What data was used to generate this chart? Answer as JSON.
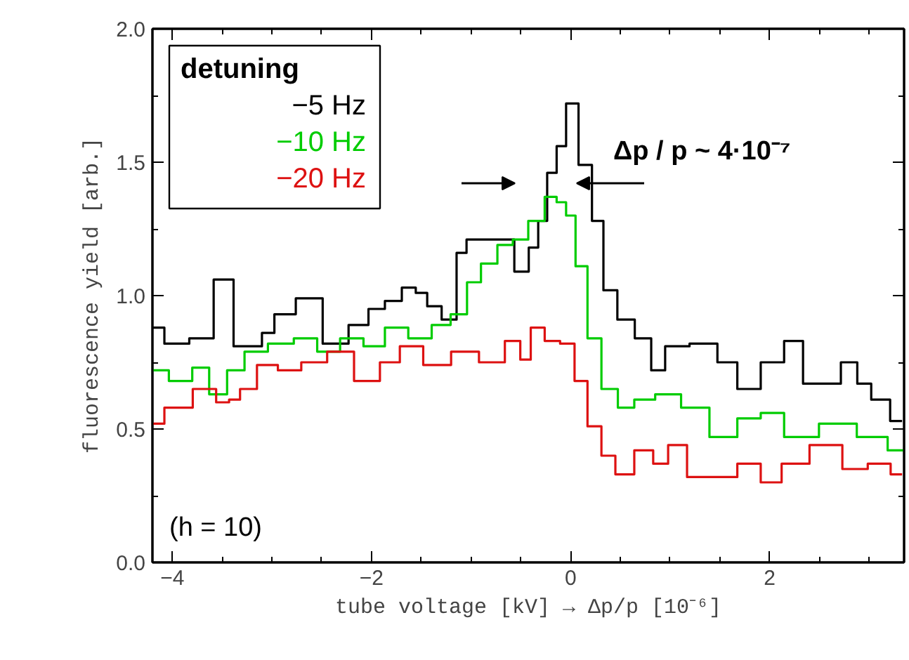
{
  "chart_data": {
    "type": "step",
    "xlabel": "tube voltage [kV] → Δp/p [10⁻⁶]",
    "ylabel": "fluorescence yield [arb.]",
    "legend_title": "detuning",
    "legend": "top left",
    "grid": false,
    "xlim": [
      -4.2,
      3.35
    ],
    "xticks": [
      -4,
      -2,
      0,
      2
    ],
    "ylim": [
      0,
      2
    ],
    "yticks": [
      {
        "value": 0,
        "label": "0.0"
      },
      {
        "value": 0.5,
        "label": "0.5"
      },
      {
        "value": 1,
        "label": "1.0"
      },
      {
        "value": 1.5,
        "label": "1.5"
      },
      {
        "value": 2,
        "label": "2.0"
      }
    ],
    "annotations": [
      "Δp / p ~ 4·10⁻⁷",
      "(h = 10)"
    ],
    "series": [
      {
        "name": "−5 Hz",
        "color": "#000000",
        "x": [
          -4.2,
          -3.96,
          -3.7,
          -3.47,
          -3.3,
          -3.15,
          -3.05,
          -2.9,
          -2.62,
          -2.36,
          -2.1,
          -1.96,
          -1.77,
          -1.62,
          -1.49,
          -1.39,
          -1.2,
          -1.09,
          -1.0,
          -0.9,
          -0.66,
          -0.47,
          -0.37,
          -0.28,
          -0.19,
          -0.09,
          0.0,
          0.16,
          0.27,
          0.39,
          0.55,
          0.74,
          0.88,
          1.02,
          1.37,
          1.58,
          1.77,
          2.05,
          2.24,
          2.43,
          2.62,
          2.81,
          2.95,
          3.09,
          3.33
        ],
        "values": [
          0.88,
          0.82,
          0.84,
          1.06,
          0.81,
          0.81,
          0.86,
          0.93,
          0.99,
          0.82,
          0.89,
          0.95,
          0.98,
          1.03,
          1.01,
          0.96,
          0.91,
          1.16,
          1.21,
          1.21,
          1.21,
          1.09,
          1.18,
          1.28,
          1.46,
          1.56,
          1.72,
          1.49,
          1.28,
          1.02,
          0.91,
          0.84,
          0.72,
          0.81,
          0.82,
          0.75,
          0.65,
          0.75,
          0.83,
          0.67,
          0.67,
          0.75,
          0.67,
          0.61,
          0.53
        ]
      },
      {
        "name": "−10 Hz",
        "color": "#00cc00",
        "x": [
          -4.2,
          -3.87,
          -3.73,
          -3.53,
          -3.37,
          -3.18,
          -2.9,
          -2.66,
          -2.43,
          -2.2,
          -1.96,
          -1.77,
          -1.49,
          -1.3,
          -1.11,
          -0.97,
          -0.83,
          -0.64,
          -0.52,
          -0.33,
          -0.19,
          -0.09,
          0.0,
          0.1,
          0.24,
          0.38,
          0.57,
          0.71,
          0.99,
          1.23,
          1.56,
          1.79,
          2.03,
          2.26,
          2.73,
          3.02,
          3.35
        ],
        "values": [
          0.72,
          0.68,
          0.73,
          0.63,
          0.72,
          0.79,
          0.82,
          0.84,
          0.79,
          0.84,
          0.81,
          0.88,
          0.84,
          0.89,
          0.93,
          1.05,
          1.12,
          1.19,
          1.21,
          1.28,
          1.37,
          1.35,
          1.3,
          1.11,
          0.84,
          0.65,
          0.58,
          0.61,
          0.63,
          0.58,
          0.47,
          0.54,
          0.56,
          0.47,
          0.52,
          0.47,
          0.42
        ]
      },
      {
        "name": "−20 Hz",
        "color": "#dd1111",
        "x": [
          -4.2,
          -3.96,
          -3.63,
          -3.49,
          -3.37,
          -3.27,
          -3.03,
          -2.85,
          -2.56,
          -2.33,
          -2.02,
          -1.81,
          -1.62,
          -1.34,
          -1.06,
          -0.78,
          -0.54,
          -0.47,
          -0.33,
          -0.19,
          -0.02,
          0.1,
          0.24,
          0.38,
          0.52,
          0.76,
          0.9,
          1.06,
          1.28,
          1.56,
          1.79,
          2.03,
          2.21,
          2.59,
          2.87,
          3.1,
          3.33
        ],
        "values": [
          0.52,
          0.58,
          0.65,
          0.6,
          0.61,
          0.65,
          0.74,
          0.72,
          0.75,
          0.79,
          0.68,
          0.75,
          0.81,
          0.74,
          0.79,
          0.75,
          0.83,
          0.76,
          0.88,
          0.83,
          0.82,
          0.68,
          0.51,
          0.4,
          0.33,
          0.42,
          0.37,
          0.44,
          0.32,
          0.32,
          0.37,
          0.3,
          0.37,
          0.44,
          0.35,
          0.37,
          0.33
        ]
      }
    ]
  }
}
